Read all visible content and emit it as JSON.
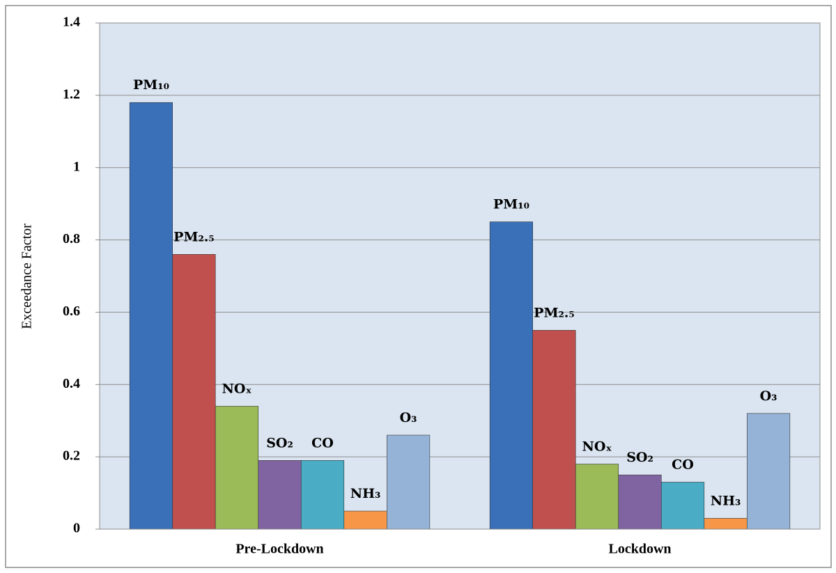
{
  "chart_data": {
    "type": "bar",
    "y_label": "Exceedance Factor",
    "categories": [
      "Pre-Lockdown",
      "Lockdown"
    ],
    "series": [
      {
        "name": "PM₁₀",
        "color": "#3a70b8",
        "values": [
          1.18,
          0.85
        ]
      },
      {
        "name": "PM₂.₅",
        "color": "#c0504d",
        "values": [
          0.76,
          0.55
        ]
      },
      {
        "name": "NOₓ",
        "color": "#9bbb59",
        "values": [
          0.34,
          0.18
        ]
      },
      {
        "name": "SO₂",
        "color": "#8064a2",
        "values": [
          0.19,
          0.15
        ]
      },
      {
        "name": "CO",
        "color": "#4bacc6",
        "values": [
          0.19,
          0.13
        ]
      },
      {
        "name": "NH₃",
        "color": "#f79646",
        "values": [
          0.05,
          0.03
        ]
      },
      {
        "name": "O₃",
        "color": "#95b3d7",
        "values": [
          0.26,
          0.32
        ]
      }
    ],
    "ylim": [
      0,
      1.4
    ],
    "yticks": [
      0,
      0.2,
      0.4,
      0.6,
      0.8,
      1,
      1.2,
      1.4
    ],
    "grid": true
  }
}
